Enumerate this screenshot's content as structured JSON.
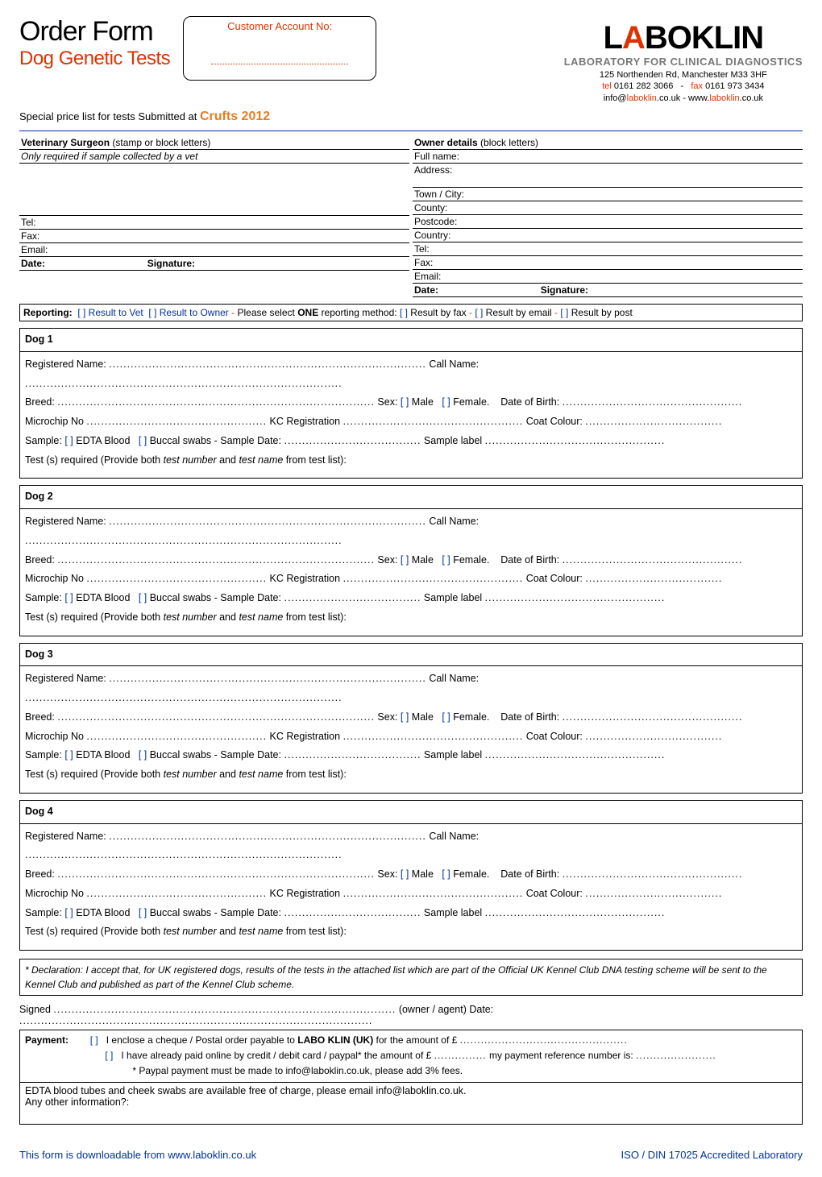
{
  "header": {
    "title": "Order Form",
    "subtitle": "Dog Genetic Tests",
    "account_box_label": "Customer Account No:",
    "special_line_pre": "Special price list for tests Submitted at ",
    "special_line_event": "Crufts 2012"
  },
  "logo": {
    "text_pre": "L",
    "text_A": "A",
    "text_post": "BOKLIN",
    "tagline": "LABORATORY FOR CLINICAL DIAGNOSTICS",
    "address": "125 Northenden Rd, Manchester M33 3HF",
    "tel_label": "tel ",
    "tel": "0161 282 3066",
    "fax_label": "fax ",
    "fax": "0161 973 3434",
    "email_pre": "info@",
    "email_domain": "laboklin",
    "email_post": ".co.uk",
    "web_pre": " - www.",
    "web_domain": "laboklin",
    "web_post": ".co.uk"
  },
  "vet": {
    "heading": "Veterinary Surgeon (stamp or block letters)",
    "heading_bold": "Veterinary Surgeon",
    "heading_rest": " (stamp or block letters)",
    "note": "Only required if sample collected by a vet",
    "tel": "Tel:",
    "fax": "Fax:",
    "email": "Email:",
    "date": "Date:",
    "sig": "Signature:"
  },
  "owner": {
    "heading_bold": "Owner details",
    "heading_rest": " (block letters)",
    "full_name": "Full name:",
    "address": "Address:",
    "town": "Town / City:",
    "county": "County:",
    "postcode": "Postcode:",
    "country": "Country:",
    "tel": "Tel:",
    "fax": "Fax:",
    "email": "Email:",
    "date": "Date:",
    "sig": "Signature:"
  },
  "reporting": {
    "label": "Reporting:",
    "opt_vet": " Result to Vet ",
    "opt_owner": " Result to Owner ",
    "dash": " - ",
    "please": "Please select ",
    "one": "ONE",
    "please2": " reporting method: ",
    "by_fax": " Result by fax ",
    "by_email": " Result by email ",
    "by_post": " Result by post"
  },
  "dog_labels": {
    "reg_name": "Registered Name: ",
    "call_name": " Call Name: ",
    "breed": "Breed: ",
    "sex": " Sex: ",
    "male": " Male",
    "female": " Female.",
    "dob": "Date of Birth: ",
    "microchip": "Microchip No ",
    "kc": " KC  Registration ",
    "coat": " Coat Colour: ",
    "sample": "Sample: ",
    "edta": " EDTA Blood",
    "buccal": " Buccal swabs",
    "sep": "      -      ",
    "sample_date": "Sample Date: ",
    "sample_label": " Sample label ",
    "tests_req_pre": "Test (s) required  (Provide both ",
    "tests_req_tn": "test number",
    "tests_req_and": " and ",
    "tests_req_name": "test name",
    "tests_req_post": " from test list):"
  },
  "dogs": [
    "Dog 1",
    "Dog  2",
    "Dog 3",
    "Dog 4"
  ],
  "declaration": {
    "text_pre": "* Declaration: I accept that, for UK registered dogs, results of the tests in the attached list which are part of the Official UK Kennel Club DNA testing scheme will be sent to the Kennel Club and published as part of the Kennel Club scheme."
  },
  "signed": {
    "pre": "Signed ",
    "mid": " (owner / agent) Date: "
  },
  "payment": {
    "label": "Payment:",
    "opt1_pre": "I enclose a cheque / Postal order payable to ",
    "opt1_bold": "LABO KLIN (UK)",
    "opt1_post": " for the amount of   £ ",
    "opt2_pre": "I have already paid online by credit / debit card / paypal* the amount of £ ",
    "opt2_mid": " my payment reference number is: ",
    "note": "* Paypal payment must be made to info@laboklin.co.uk, please add 3% fees."
  },
  "footer_box": {
    "line1": "EDTA blood tubes and cheek swabs are available free of charge, please email info@laboklin.co.uk.",
    "line2": "Any other information?:"
  },
  "page_footer": {
    "left": "This form is downloadable from www.laboklin.co.uk",
    "right": "ISO / DIN 17025 Accredited Laboratory"
  },
  "colors": {
    "red": "#d30",
    "orange": "#e67e22",
    "blue": "#003399",
    "grey": "#777"
  }
}
